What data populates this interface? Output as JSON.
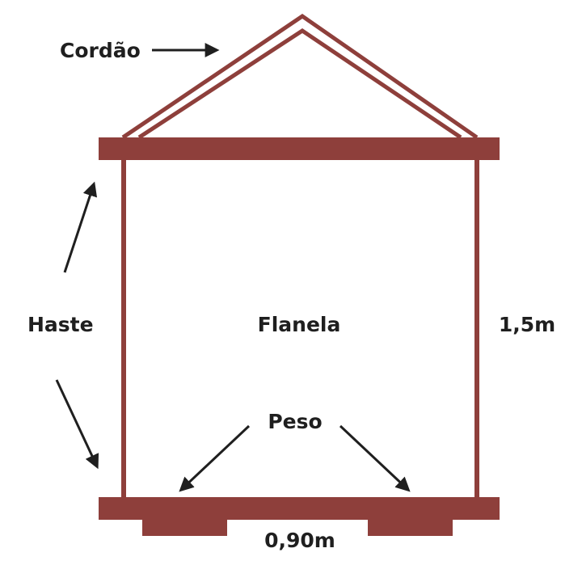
{
  "colors": {
    "frame": "#8e3f3b",
    "text": "#1f1f1f",
    "background": "#ffffff"
  },
  "labels": {
    "cord": "Cordão",
    "rod": "Haste",
    "flannel": "Flanela",
    "weight": "Peso",
    "height": "1,5m",
    "width": "0,90m"
  }
}
